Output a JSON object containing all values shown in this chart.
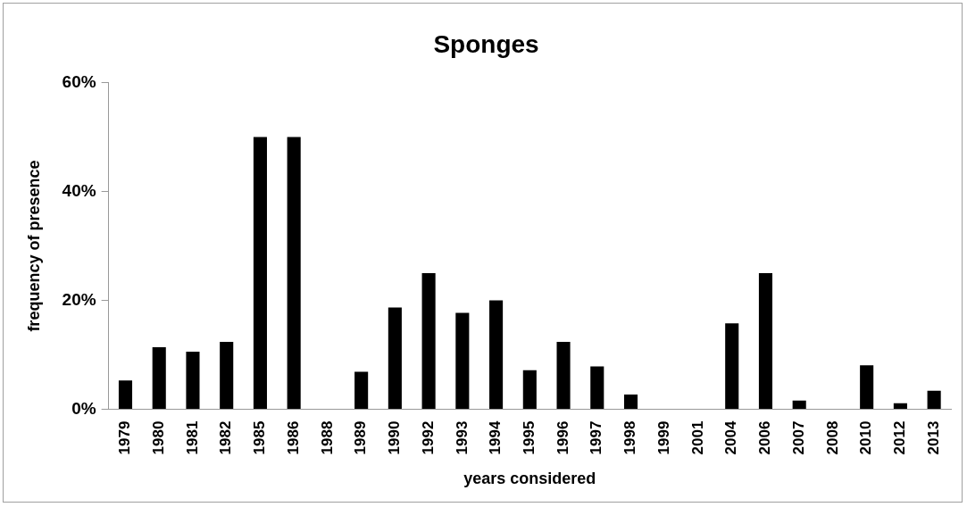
{
  "chart_data": {
    "type": "bar",
    "title": "Sponges",
    "xlabel": "years considered",
    "ylabel": "frequency of presence",
    "categories": [
      "1979",
      "1980",
      "1981",
      "1982",
      "1985",
      "1986",
      "1988",
      "1989",
      "1990",
      "1992",
      "1993",
      "1994",
      "1995",
      "1996",
      "1997",
      "1998",
      "1999",
      "2001",
      "2004",
      "2006",
      "2007",
      "2008",
      "2010",
      "2012",
      "2013"
    ],
    "values": [
      5.3,
      11.4,
      10.6,
      12.4,
      50,
      50,
      0,
      6.9,
      18.7,
      25,
      17.7,
      20,
      7.2,
      12.4,
      7.9,
      2.7,
      0,
      0,
      15.8,
      25,
      1.6,
      0,
      8.1,
      1.1,
      3.4
    ],
    "color": "#000000",
    "ylim": [
      0,
      60
    ],
    "yticks": [
      {
        "value": 0,
        "label": "0%"
      },
      {
        "value": 20,
        "label": "20%"
      },
      {
        "value": 40,
        "label": "40%"
      },
      {
        "value": 60,
        "label": "60%"
      }
    ],
    "grid": false,
    "legend": false
  }
}
